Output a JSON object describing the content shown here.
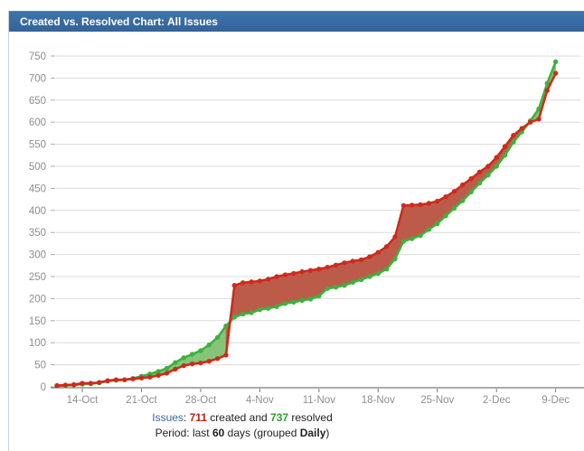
{
  "header": {
    "title": "Created vs. Resolved Chart: All Issues"
  },
  "chart_data": {
    "type": "area",
    "title": "Created vs. Resolved Chart: All Issues",
    "grid": "horizontal",
    "legend": "none",
    "ylim": [
      0,
      750
    ],
    "y_ticks": [
      0,
      50,
      100,
      150,
      200,
      250,
      300,
      350,
      400,
      450,
      500,
      550,
      600,
      650,
      700,
      750
    ],
    "x_tick_labels": [
      "14-Oct",
      "21-Oct",
      "28-Oct",
      "4-Nov",
      "11-Nov",
      "18-Nov",
      "25-Nov",
      "2-Dec",
      "9-Dec"
    ],
    "x_tick_day_indices": [
      3,
      10,
      17,
      24,
      31,
      38,
      45,
      52,
      59
    ],
    "num_days": 60,
    "series": [
      {
        "name": "Created",
        "color": "#cf2a1b",
        "fill": "#bd5b4b",
        "values": [
          3,
          4,
          5,
          8,
          8,
          10,
          14,
          16,
          16,
          18,
          20,
          22,
          26,
          31,
          40,
          48,
          52,
          54,
          58,
          64,
          72,
          230,
          236,
          238,
          240,
          244,
          250,
          254,
          257,
          261,
          264,
          267,
          271,
          276,
          281,
          285,
          288,
          295,
          305,
          318,
          340,
          411,
          412,
          413,
          416,
          421,
          431,
          443,
          458,
          472,
          487,
          500,
          520,
          545,
          570,
          586,
          600,
          607,
          672,
          711
        ]
      },
      {
        "name": "Resolved",
        "color": "#3db13d",
        "fill": "#85c579",
        "values": [
          2,
          3,
          4,
          6,
          7,
          9,
          13,
          15,
          16,
          19,
          24,
          29,
          35,
          42,
          55,
          66,
          74,
          82,
          95,
          112,
          138,
          158,
          165,
          168,
          175,
          178,
          182,
          189,
          192,
          196,
          199,
          206,
          223,
          226,
          230,
          237,
          243,
          250,
          257,
          267,
          290,
          330,
          336,
          343,
          357,
          370,
          388,
          405,
          422,
          442,
          462,
          480,
          500,
          525,
          555,
          578,
          603,
          630,
          688,
          737
        ]
      }
    ]
  },
  "footer": {
    "issues_label": "Issues",
    "colon": ": ",
    "created_count": "711",
    "created_text": " created and ",
    "resolved_count": "737",
    "resolved_text": " resolved",
    "period_prefix": "Period: last ",
    "period_days": "60",
    "period_mid": " days (grouped ",
    "period_group": "Daily",
    "period_suffix": ")"
  },
  "colors": {
    "header_bg": "#37699f",
    "created_line": "#cf2a1b",
    "created_fill": "#bd5b4b",
    "resolved_line": "#3db13d",
    "resolved_fill": "#85c579",
    "gridline": "#dcdcdc",
    "axis": "#7a7a7a",
    "tick_text": "#8e8e8e",
    "link_blue": "#36699f"
  }
}
